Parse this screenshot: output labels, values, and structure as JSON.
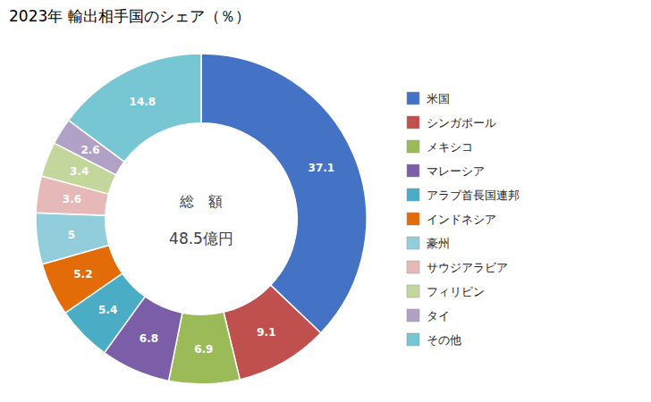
{
  "chart_data": {
    "type": "pie",
    "title": "2023年 輸出相手国のシェア（％）",
    "annotations": [
      "総　額",
      "48.5億円"
    ],
    "categories": [
      "米国",
      "シンガポール",
      "メキシコ",
      "マレーシア",
      "アラブ首長国連邦",
      "インドネシア",
      "豪州",
      "サウジアラビア",
      "フィリピン",
      "タイ",
      "その他"
    ],
    "values": [
      37.1,
      9.1,
      6.9,
      6.8,
      5.4,
      5.2,
      5.0,
      3.6,
      3.4,
      2.6,
      14.8
    ],
    "colors": [
      "#4472C4",
      "#C0504D",
      "#9BBB59",
      "#7B5EA7",
      "#4BACC6",
      "#E36C09",
      "#92CDDC",
      "#E6B8B7",
      "#C3D69B",
      "#B2A1C7",
      "#76C6D4"
    ],
    "data_labels": true,
    "legend": "right"
  }
}
